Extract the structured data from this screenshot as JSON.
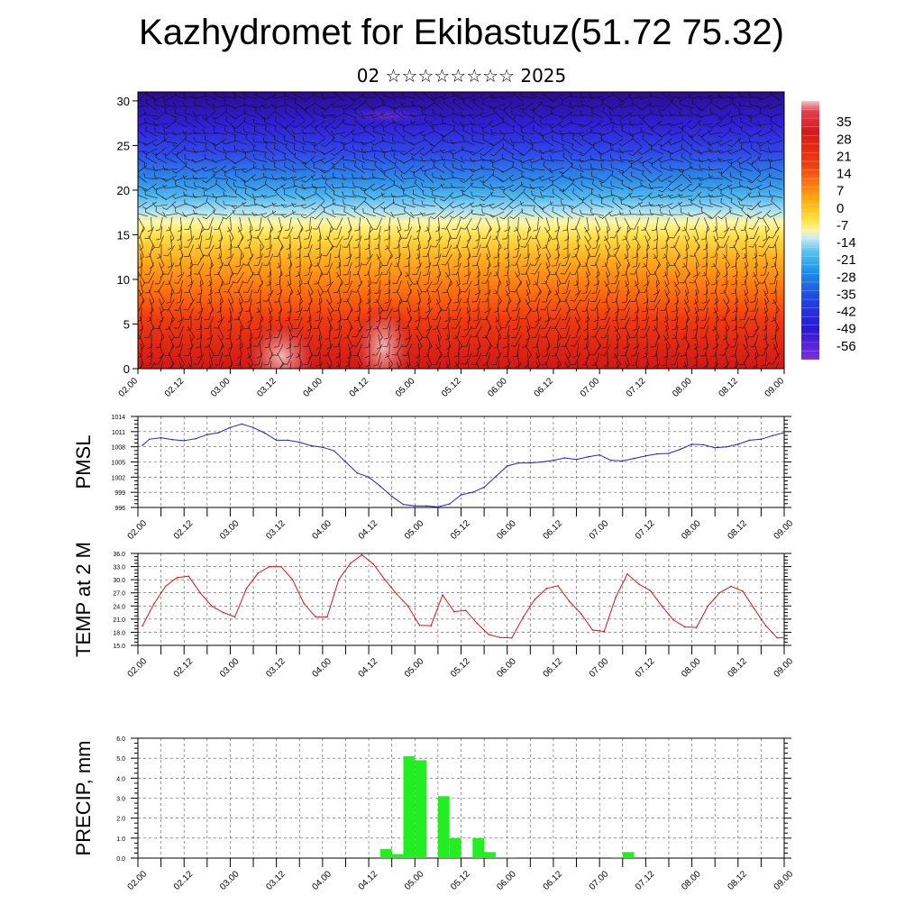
{
  "title": "Kazhydromet for Ekibastuz(51.72 75.32)",
  "subtitle": "02 ☆☆☆☆☆☆☆☆ 2025",
  "colors": {
    "pmsl": "#1f1fd6",
    "temp": "#e01010",
    "precip": "#22ee22",
    "grid": "#555555"
  },
  "x_tick_labels": [
    "02.00",
    "02.12",
    "03.00",
    "03.12",
    "04.00",
    "04.12",
    "05.00",
    "05.12",
    "06.00",
    "06.12",
    "07.00",
    "07.12",
    "08.00",
    "08.12",
    "09.00"
  ],
  "chart_data": [
    {
      "type": "heatmap",
      "name": "temperature-wind-cross-section",
      "ylim": [
        0,
        31
      ],
      "yticks": [
        "0",
        "5",
        "10",
        "15",
        "20",
        "25",
        "30"
      ],
      "colorbar_labels": [
        "35",
        "28",
        "21",
        "14",
        "7",
        "0",
        "-7",
        "-14",
        "-21",
        "-28",
        "-35",
        "-42",
        "-49",
        "-56"
      ],
      "colorbar_range": [
        -63,
        42
      ],
      "overlay": "wind barbs"
    },
    {
      "type": "line",
      "ylabel": "PMSL",
      "ylim": [
        996,
        1014
      ],
      "yticks": [
        "996",
        "999",
        "1002",
        "1005",
        "1008",
        "1011",
        "1014"
      ],
      "x": [
        0.2,
        0.5,
        1,
        1.5,
        2,
        2.5,
        3,
        3.5,
        4,
        4.5,
        5,
        5.5,
        6,
        6.5,
        7,
        7.5,
        8,
        8.5,
        9,
        9.5,
        10,
        10.5,
        11,
        11.5,
        12,
        12.5,
        13,
        13.5,
        14,
        14.5,
        15,
        15.5,
        16,
        16.5,
        17,
        17.5,
        18,
        18.5,
        19,
        19.5,
        20,
        20.5,
        21,
        21.5,
        22,
        22.5,
        23,
        23.5,
        24,
        24.5,
        25,
        25.5,
        26,
        26.5,
        27,
        27.5,
        28
      ],
      "values": [
        1008.3,
        1009.5,
        1009.8,
        1009.4,
        1009.2,
        1009.6,
        1010.4,
        1010.8,
        1011.8,
        1012.5,
        1011.8,
        1010.7,
        1009.3,
        1009.3,
        1008.9,
        1008.2,
        1007.9,
        1007.2,
        1005.0,
        1002.8,
        1002.0,
        1000.2,
        998.2,
        996.6,
        996.3,
        996.3,
        996.1,
        996.7,
        998.5,
        999.0,
        1000.0,
        1002.1,
        1004.2,
        1004.8,
        1004.8,
        1005.0,
        1005.3,
        1005.8,
        1005.5,
        1006.0,
        1006.4,
        1005.3,
        1005.2,
        1005.7,
        1006.2,
        1006.6,
        1006.7,
        1007.5,
        1008.5,
        1008.4,
        1007.8,
        1008.0,
        1008.5,
        1009.3,
        1009.5,
        1010.2,
        1010.8
      ]
    },
    {
      "type": "line",
      "ylabel": "TEMP at 2 M",
      "ylim": [
        15,
        36
      ],
      "yticks": [
        "15.0",
        "18.0",
        "21.0",
        "24.0",
        "27.0",
        "30.0",
        "33.0",
        "36.0"
      ],
      "x": [
        0.2,
        0.7,
        1.2,
        1.7,
        2.2,
        2.7,
        3.2,
        3.7,
        4.2,
        4.7,
        5.2,
        5.7,
        6.2,
        6.7,
        7.2,
        7.7,
        8.2,
        8.7,
        9.2,
        9.7,
        10.2,
        10.7,
        11.2,
        11.7,
        12.2,
        12.7,
        13.2,
        13.7,
        14.2,
        14.7,
        15.2,
        15.7,
        16.2,
        16.7,
        17.2,
        17.7,
        18.2,
        18.7,
        19.2,
        19.7,
        20.2,
        20.7,
        21.2,
        21.7,
        22.2,
        22.7,
        23.2,
        23.7,
        24.2,
        24.7,
        25.2,
        25.7,
        26.2,
        26.7,
        27.2,
        27.7,
        28.0
      ],
      "values": [
        19.5,
        24.5,
        28.5,
        30.5,
        30.8,
        27.0,
        24.0,
        22.5,
        21.5,
        28.0,
        31.5,
        33.0,
        33.0,
        30.0,
        24.5,
        21.5,
        21.5,
        30.0,
        33.7,
        35.7,
        33.6,
        30.0,
        26.8,
        24.0,
        19.6,
        19.5,
        26.5,
        22.7,
        23.0,
        20.0,
        17.5,
        16.8,
        16.7,
        21.5,
        25.5,
        28.0,
        28.6,
        25.0,
        22.2,
        18.5,
        18.2,
        26.0,
        31.3,
        29.0,
        27.5,
        24.0,
        20.8,
        19.2,
        19.1,
        24.0,
        27.0,
        28.5,
        27.4,
        23.4,
        19.5,
        16.7,
        16.8
      ]
    },
    {
      "type": "bar",
      "ylabel": "PRECIP, mm",
      "ylim": [
        0,
        6
      ],
      "yticks": [
        "0.0",
        "1.0",
        "2.0",
        "3.0",
        "4.0",
        "5.0",
        "6.0"
      ],
      "bar_width": 0.5,
      "x": [
        11.0,
        11.5,
        12.0,
        12.5,
        13.0,
        13.5,
        14.0,
        14.5,
        15.0,
        15.5,
        16.0,
        16.5,
        21.0,
        21.5
      ],
      "values": [
        0.45,
        0.2,
        5.1,
        4.9,
        0.0,
        3.1,
        1.0,
        0.0,
        1.0,
        0.3,
        0.05,
        0.05,
        0.05,
        0.3
      ]
    }
  ]
}
